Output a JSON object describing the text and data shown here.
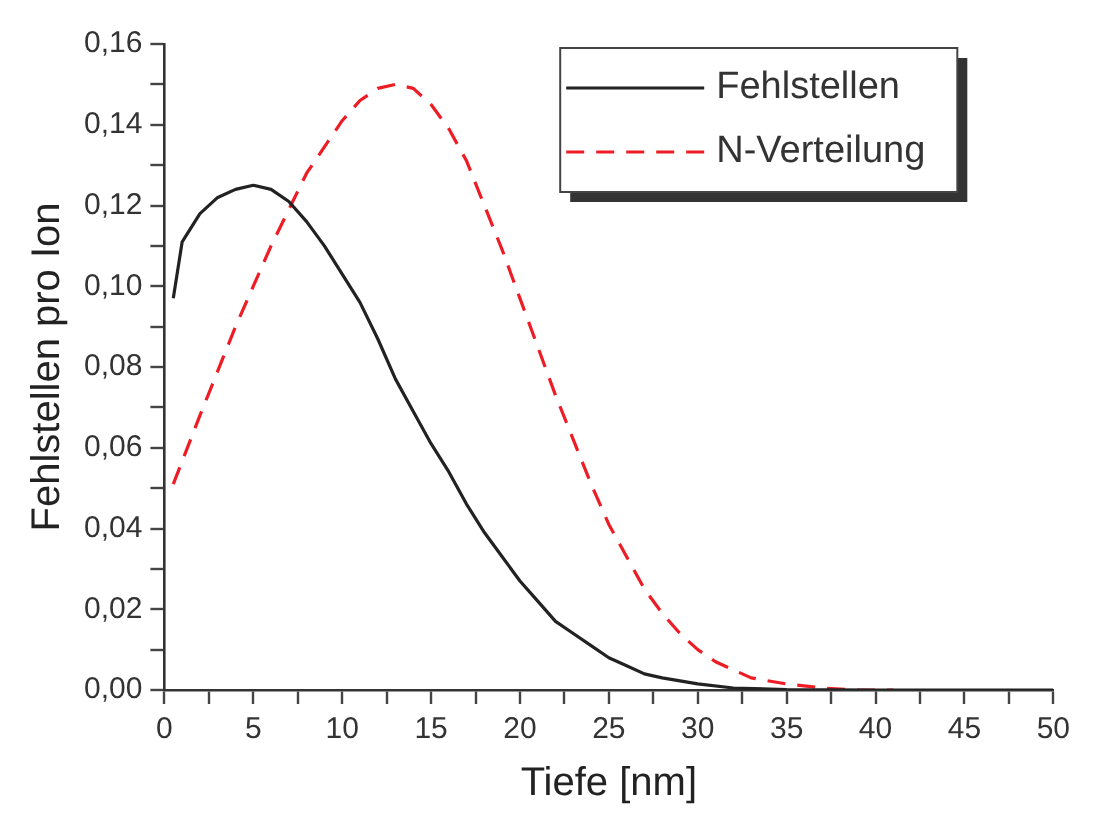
{
  "chart_data": {
    "type": "line",
    "xlabel": "Tiefe [nm]",
    "ylabel": "Fehlstellen pro Ion",
    "xlim": [
      0,
      50
    ],
    "ylim": [
      0,
      0.16
    ],
    "xticks": [
      0,
      {
        "value": 2.5,
        "label": null
      },
      5,
      {
        "value": 7.5,
        "label": null
      },
      10,
      {
        "value": 12.5,
        "label": null
      },
      15,
      {
        "value": 17.5,
        "label": null
      },
      20,
      {
        "value": 22.5,
        "label": null
      },
      25,
      {
        "value": 27.5,
        "label": null
      },
      30,
      {
        "value": 32.5,
        "label": null
      },
      35,
      {
        "value": 37.5,
        "label": null
      },
      40,
      {
        "value": 42.5,
        "label": null
      },
      45,
      {
        "value": 47.5,
        "label": null
      },
      50
    ],
    "yticks": [
      {
        "value": 0,
        "label": "0,00"
      },
      {
        "value": 0.01,
        "label": null
      },
      {
        "value": 0.02,
        "label": "0,02"
      },
      {
        "value": 0.03,
        "label": null
      },
      {
        "value": 0.04,
        "label": "0,04"
      },
      {
        "value": 0.05,
        "label": null
      },
      {
        "value": 0.06,
        "label": "0,06"
      },
      {
        "value": 0.07,
        "label": null
      },
      {
        "value": 0.08,
        "label": "0,08"
      },
      {
        "value": 0.09,
        "label": null
      },
      {
        "value": 0.1,
        "label": "0,10"
      },
      {
        "value": 0.11,
        "label": null
      },
      {
        "value": 0.12,
        "label": "0,12"
      },
      {
        "value": 0.13,
        "label": null
      },
      {
        "value": 0.14,
        "label": "0,14"
      },
      {
        "value": 0.15,
        "label": null
      },
      {
        "value": 0.16,
        "label": "0,16"
      }
    ],
    "grid": false,
    "legend": "top right",
    "marker": "none",
    "series": [
      {
        "name": "Fehlstellen",
        "color": "#222222",
        "line_style": "solid",
        "x": [
          0.5,
          1,
          2,
          3,
          4,
          5,
          6,
          7,
          8,
          9,
          10,
          11,
          12,
          13,
          14,
          15,
          16,
          17,
          18,
          19,
          20,
          21,
          22,
          23,
          24,
          25,
          26,
          27,
          28,
          30,
          32,
          35,
          40,
          45,
          50
        ],
        "values": [
          0.097,
          0.111,
          0.118,
          0.122,
          0.124,
          0.125,
          0.124,
          0.121,
          0.116,
          0.11,
          0.103,
          0.096,
          0.087,
          0.077,
          0.069,
          0.061,
          0.054,
          0.046,
          0.039,
          0.033,
          0.027,
          0.022,
          0.017,
          0.014,
          0.011,
          0.008,
          0.006,
          0.004,
          0.003,
          0.0015,
          0.0005,
          0.0001,
          0,
          0,
          0
        ]
      },
      {
        "name": "N-Verteilung",
        "color": "#ee1c25",
        "line_style": "dashed",
        "x": [
          0.5,
          2,
          4,
          6,
          8,
          10,
          11,
          12,
          13,
          14,
          15,
          16,
          17,
          18,
          19,
          20,
          21,
          22,
          23,
          24,
          25,
          26,
          27,
          28,
          29,
          30,
          31,
          32,
          33,
          35,
          37,
          39,
          41
        ],
        "values": [
          0.051,
          0.068,
          0.09,
          0.11,
          0.128,
          0.141,
          0.146,
          0.149,
          0.15,
          0.149,
          0.145,
          0.139,
          0.131,
          0.12,
          0.109,
          0.097,
          0.085,
          0.073,
          0.062,
          0.051,
          0.041,
          0.033,
          0.025,
          0.019,
          0.014,
          0.01,
          0.007,
          0.005,
          0.003,
          0.0015,
          0.0005,
          0,
          0
        ]
      }
    ]
  }
}
